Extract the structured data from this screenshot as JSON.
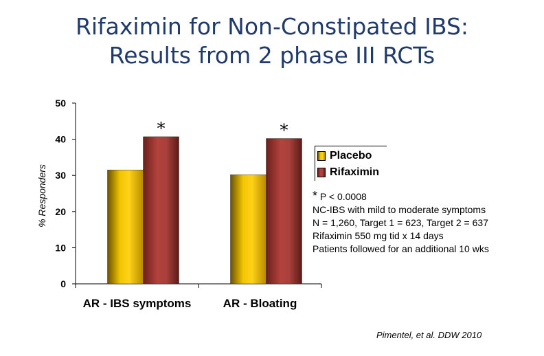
{
  "slide": {
    "title_line1": "Rifaximin for Non-Constipated IBS:",
    "title_line2": "Results from 2 phase III RCTs",
    "footnote_marker": "*",
    "footnote_text": "P < 0.0008",
    "notes": [
      "NC-IBS with mild to moderate symptoms",
      "N = 1,260, Target 1 = 623, Target 2 = 637",
      "Rifaximin 550 mg tid x 14 days",
      "Patients followed for an additional 10 wks"
    ],
    "citation": "Pimentel, et al. DDW 2010"
  },
  "chart_data": {
    "type": "bar",
    "title": "",
    "xlabel": "",
    "ylabel": "% Responders",
    "ylim": [
      0,
      50
    ],
    "yticks": [
      "0",
      "10",
      "20",
      "30",
      "40",
      "50"
    ],
    "categories": [
      "AR - IBS symptoms",
      "AR - Bloating"
    ],
    "series": [
      {
        "name": "Placebo",
        "values": [
          31.5,
          30.2
        ],
        "color": "#e0b000"
      },
      {
        "name": "Rifaximin",
        "values": [
          40.7,
          40.2
        ],
        "color": "#a53a36"
      }
    ],
    "annotations": [
      "*",
      "*"
    ],
    "legend_position": "right",
    "grid": false
  }
}
